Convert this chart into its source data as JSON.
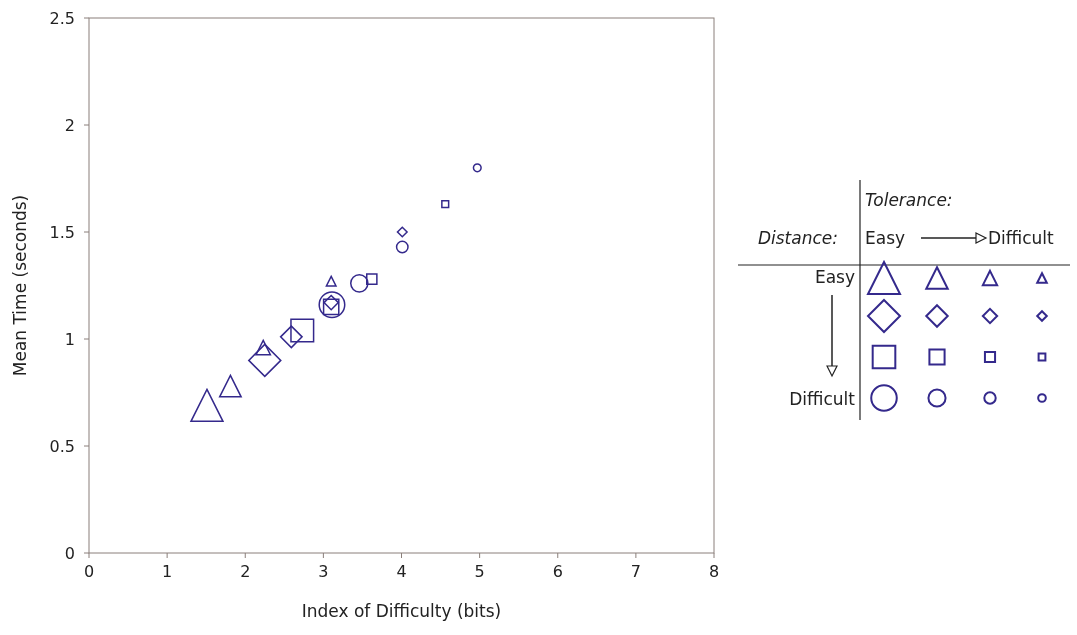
{
  "chart_data": {
    "type": "scatter",
    "xlabel": "Index of Difficulty (bits)",
    "ylabel": "Mean Time (seconds)",
    "xlim": [
      0,
      8
    ],
    "ylim": [
      0,
      2.5
    ],
    "xticks": [
      0,
      1,
      2,
      3,
      4,
      5,
      6,
      7,
      8
    ],
    "yticks": [
      0,
      0.5,
      1,
      1.5,
      2,
      2.5
    ],
    "grid": false,
    "annotations": [
      "Tolerance:",
      "Distance:",
      "Easy",
      "Difficult",
      "Easy",
      "Difficult"
    ],
    "series": [
      {
        "marker": "triangle",
        "color": "#34298c",
        "x": [
          1.51,
          1.81,
          2.23,
          3.1
        ],
        "values": [
          0.69,
          0.78,
          0.96,
          1.27
        ],
        "sizes": [
          1,
          0.45,
          0.2,
          0.09
        ]
      },
      {
        "marker": "diamond",
        "color": "#34298c",
        "x": [
          2.25,
          2.59,
          3.1,
          4.01
        ],
        "values": [
          0.9,
          1.01,
          1.17,
          1.5
        ],
        "sizes": [
          1,
          0.45,
          0.2,
          0.09
        ]
      },
      {
        "marker": "square",
        "color": "#34298c",
        "x": [
          2.73,
          3.1,
          3.62,
          4.56
        ],
        "values": [
          1.04,
          1.15,
          1.28,
          1.63
        ],
        "sizes": [
          1,
          0.45,
          0.2,
          0.09
        ]
      },
      {
        "marker": "circle",
        "color": "#34298c",
        "x": [
          3.11,
          3.46,
          4.01,
          4.97
        ],
        "values": [
          1.16,
          1.26,
          1.43,
          1.8
        ],
        "sizes": [
          1,
          0.45,
          0.2,
          0.09
        ]
      }
    ]
  }
}
